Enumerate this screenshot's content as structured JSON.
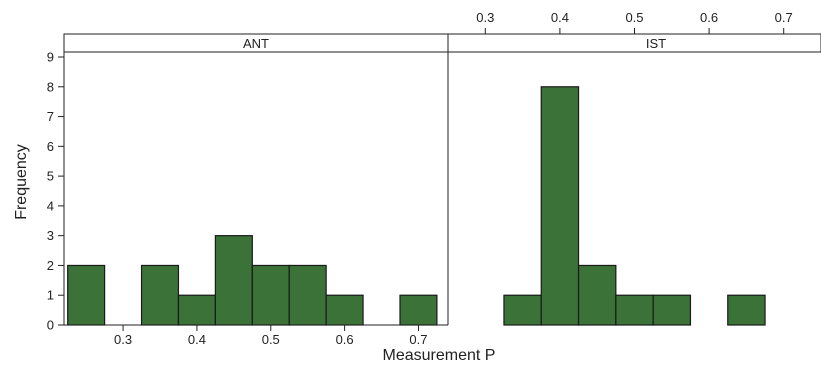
{
  "chart_data": {
    "type": "bar",
    "xlabel": "Measurement P",
    "ylabel": "Frequency",
    "ylim": [
      0,
      9
    ],
    "y_ticks": [
      "0",
      "1",
      "2",
      "3",
      "4",
      "5",
      "6",
      "7",
      "8",
      "9"
    ],
    "x_ticks": [
      "0.3",
      "0.4",
      "0.5",
      "0.6",
      "0.7"
    ],
    "x_tick_values": [
      0.3,
      0.4,
      0.5,
      0.6,
      0.7
    ],
    "bin_width": 0.05,
    "bar_color": "#3a7238",
    "panels": [
      {
        "name": "ANT",
        "x_range": [
          0.22,
          0.74
        ],
        "bin_starts": [
          0.225,
          0.325,
          0.375,
          0.425,
          0.475,
          0.525,
          0.575,
          0.675
        ],
        "values": [
          2,
          2,
          1,
          3,
          2,
          2,
          1,
          1
        ]
      },
      {
        "name": "IST",
        "x_range": [
          0.25,
          0.75
        ],
        "bin_starts": [
          0.325,
          0.375,
          0.425,
          0.475,
          0.525,
          0.625
        ],
        "values": [
          1,
          8,
          2,
          1,
          1,
          1
        ]
      }
    ]
  }
}
